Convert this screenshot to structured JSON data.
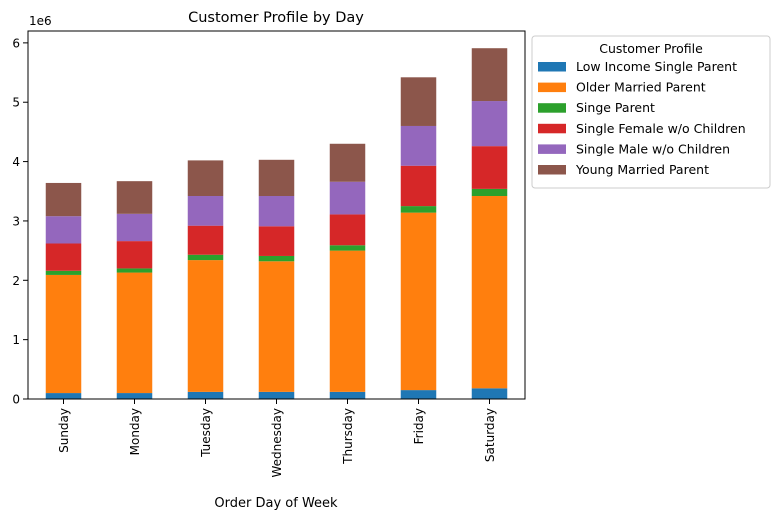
{
  "chart_data": {
    "type": "bar",
    "stacked": true,
    "title": "Customer Profile by Day",
    "xlabel": "Order Day of Week",
    "ylabel": "",
    "y_offset_text": "1e6",
    "ylim": [
      0,
      6.2
    ],
    "yticks": [
      0,
      1,
      2,
      3,
      4,
      5,
      6
    ],
    "ytick_labels": [
      "0",
      "1",
      "2",
      "3",
      "4",
      "5",
      "6"
    ],
    "grid": false,
    "legend": {
      "title": "Customer Profile",
      "placement": "outside-right-top"
    },
    "categories": [
      "Sunday",
      "Monday",
      "Tuesday",
      "Wednesday",
      "Thursday",
      "Friday",
      "Saturday"
    ],
    "series": [
      {
        "name": "Low Income Single Parent",
        "color": "#1f77b4",
        "values": [
          0.1,
          0.1,
          0.12,
          0.12,
          0.12,
          0.15,
          0.18
        ]
      },
      {
        "name": "Older Married Parent",
        "color": "#ff7f0e",
        "values": [
          1.99,
          2.03,
          2.22,
          2.2,
          2.38,
          2.99,
          3.24
        ]
      },
      {
        "name": "Singe Parent",
        "color": "#2ca02c",
        "values": [
          0.07,
          0.07,
          0.09,
          0.09,
          0.09,
          0.11,
          0.12
        ]
      },
      {
        "name": "Single Female w/o Children",
        "color": "#d62728",
        "values": [
          0.46,
          0.46,
          0.49,
          0.5,
          0.52,
          0.68,
          0.72
        ]
      },
      {
        "name": "Single Male w/o Children",
        "color": "#9467bd",
        "values": [
          0.46,
          0.46,
          0.5,
          0.51,
          0.55,
          0.67,
          0.76
        ]
      },
      {
        "name": "Young Married Parent",
        "color": "#8c564b",
        "values": [
          0.56,
          0.55,
          0.6,
          0.61,
          0.64,
          0.82,
          0.89
        ]
      }
    ]
  }
}
